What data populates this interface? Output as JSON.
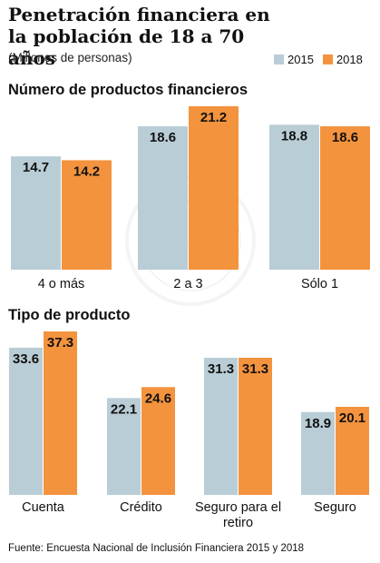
{
  "title": "Penetración financiera en la población de 18 a 70 años",
  "subtitle": "(Millones de personas)",
  "legend": [
    {
      "label": "2015",
      "color": "#b9cdd6"
    },
    {
      "label": "2018",
      "color": "#f4933e"
    }
  ],
  "source": "Fuente: Encuesta Nacional de Inclusión Financiera 2015 y 2018",
  "chart_data": [
    {
      "type": "bar",
      "title": "Número de productos financieros",
      "categories": [
        "4 o más",
        "2 a 3",
        "Sólo 1"
      ],
      "series": [
        {
          "name": "2015",
          "values": [
            14.7,
            18.6,
            18.8
          ]
        },
        {
          "name": "2018",
          "values": [
            14.2,
            21.2,
            18.6
          ]
        }
      ],
      "ylim": [
        0,
        21.2
      ],
      "grid": false,
      "legend": "top-right"
    },
    {
      "type": "bar",
      "title": "Tipo de producto",
      "categories": [
        "Cuenta",
        "Crédito",
        "Seguro para el retiro",
        "Seguro"
      ],
      "series": [
        {
          "name": "2015",
          "values": [
            33.6,
            22.1,
            31.3,
            18.9
          ]
        },
        {
          "name": "2018",
          "values": [
            37.3,
            24.6,
            31.3,
            20.1
          ]
        }
      ],
      "ylim": [
        0,
        37.3
      ],
      "grid": false,
      "legend": "top-right"
    }
  ]
}
